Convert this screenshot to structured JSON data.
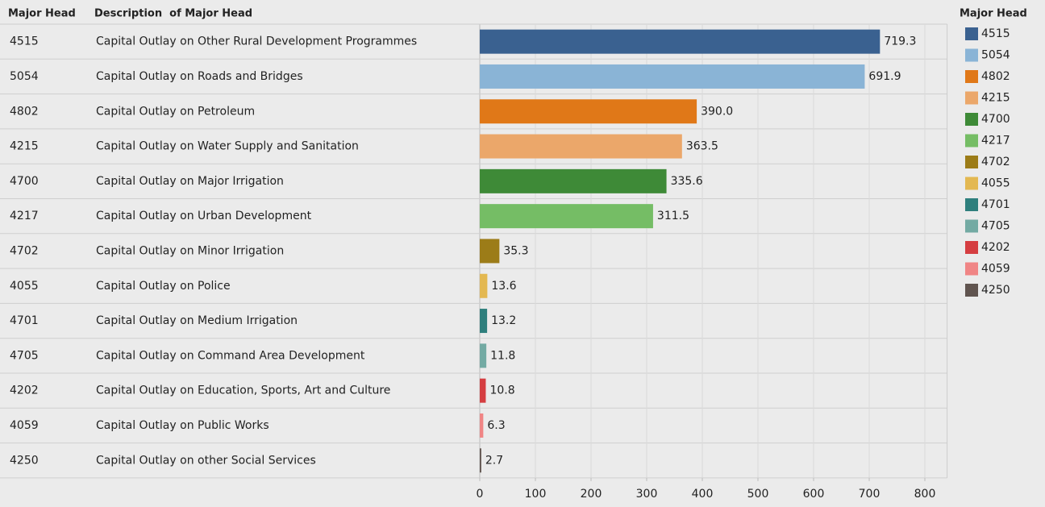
{
  "chart_data": {
    "type": "bar",
    "orientation": "horizontal",
    "column_headers": [
      "Major Head",
      "Description  of Major Head"
    ],
    "legend_title": "Major Head",
    "categories": [
      "4515",
      "5054",
      "4802",
      "4215",
      "4700",
      "4217",
      "4702",
      "4055",
      "4701",
      "4705",
      "4202",
      "4059",
      "4250"
    ],
    "descriptions": [
      "Capital Outlay on Other Rural Development Programmes",
      "Capital Outlay on Roads and Bridges",
      "Capital Outlay on Petroleum",
      "Capital Outlay on Water Supply and Sanitation",
      "Capital Outlay on Major Irrigation",
      "Capital Outlay on Urban Development",
      "Capital Outlay on Minor Irrigation",
      "Capital Outlay on Police",
      "Capital Outlay on Medium Irrigation",
      "Capital Outlay on Command Area Development",
      "Capital Outlay on Education, Sports, Art and Culture",
      "Capital Outlay on Public Works",
      "Capital Outlay on other Social Services"
    ],
    "values": [
      719.3,
      691.9,
      390,
      363.5,
      335.6,
      311.5,
      35.3,
      13.6,
      13.2,
      11.8,
      10.8,
      6.3,
      2.7
    ],
    "value_labels": [
      "719.3",
      "691.9",
      "390.0",
      "363.5",
      "335.6",
      "311.5",
      "35.3",
      "13.6",
      "13.2",
      "11.8",
      "10.8",
      "6.3",
      "2.7"
    ],
    "colors": [
      "#3a6190",
      "#8ab4d6",
      "#e07818",
      "#eba76a",
      "#3e8a37",
      "#75bd65",
      "#9c7c18",
      "#e3b851",
      "#2e7f7d",
      "#73aaa3",
      "#d53e41",
      "#f08585",
      "#60544f"
    ],
    "xlim": [
      0,
      840
    ],
    "xticks": [
      0,
      100,
      200,
      300,
      400,
      500,
      600,
      700,
      800
    ],
    "grid": true,
    "legend": "right"
  }
}
